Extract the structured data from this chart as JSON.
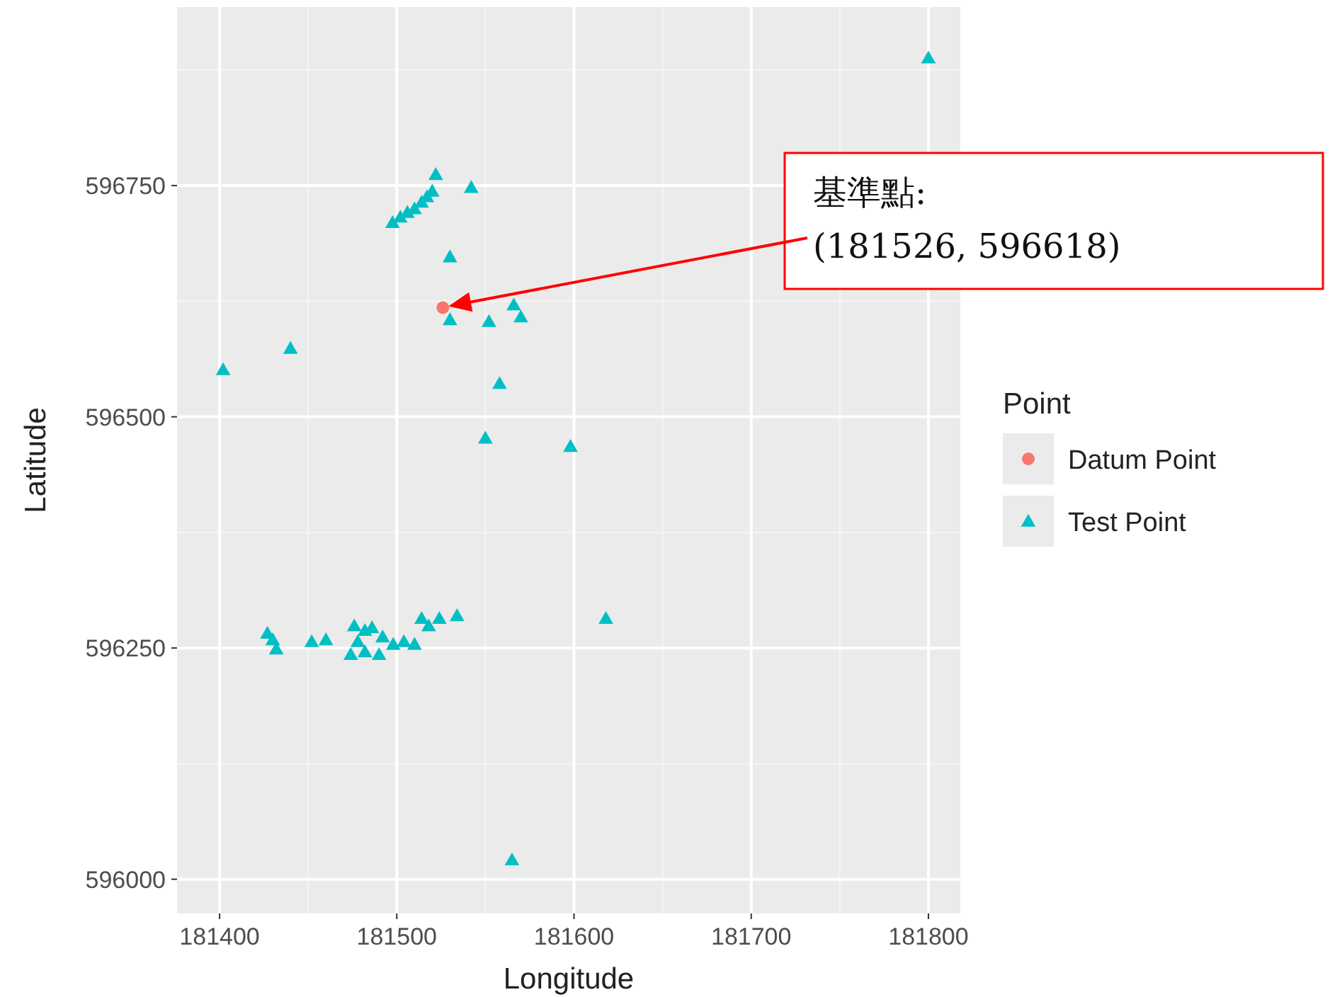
{
  "chart_data": {
    "type": "scatter",
    "xlabel": "Longitude",
    "ylabel": "Latitude",
    "legend_title": "Point",
    "legend": "right",
    "grid": true,
    "xlim": [
      181376,
      181818
    ],
    "ylim": [
      595963,
      596943
    ],
    "xticks": [
      181400,
      181500,
      181600,
      181700,
      181800
    ],
    "yticks": [
      596000,
      596250,
      596500,
      596750
    ],
    "annotations": [
      "基準點:\n(181526, 596618)"
    ],
    "series": [
      {
        "name": "Datum Point",
        "color": "#f8766d",
        "marker": "circle",
        "x": [
          181526
        ],
        "values": [
          596618
        ]
      },
      {
        "name": "Test Point",
        "color": "#00bfc4",
        "marker": "triangle",
        "x": [
          181497.6,
          181502,
          181506,
          181510,
          181514,
          181517,
          181520,
          181522,
          181542,
          181530,
          181530,
          181552,
          181566,
          181570,
          181402,
          181440,
          181558,
          181550,
          181598,
          181618,
          181565,
          181800,
          181427,
          181430,
          181432,
          181452,
          181460,
          181476,
          181482,
          181486,
          181478,
          181482,
          181474,
          181492,
          181498,
          181504,
          181514,
          181518,
          181524,
          181534,
          181490,
          181510
        ],
        "values": [
          596710,
          596716,
          596721,
          596725,
          596732,
          596738,
          596744,
          596762,
          596748,
          596673,
          596605,
          596603,
          596621,
          596608,
          596551,
          596574,
          596536,
          596477,
          596468,
          596282,
          596021,
          596888,
          596266,
          596259,
          596249,
          596257,
          596259,
          596274,
          596269,
          596272,
          596257,
          596246,
          596243,
          596262,
          596254,
          596257,
          596282,
          596274,
          596282,
          596285,
          596243,
          596254
        ]
      }
    ]
  }
}
